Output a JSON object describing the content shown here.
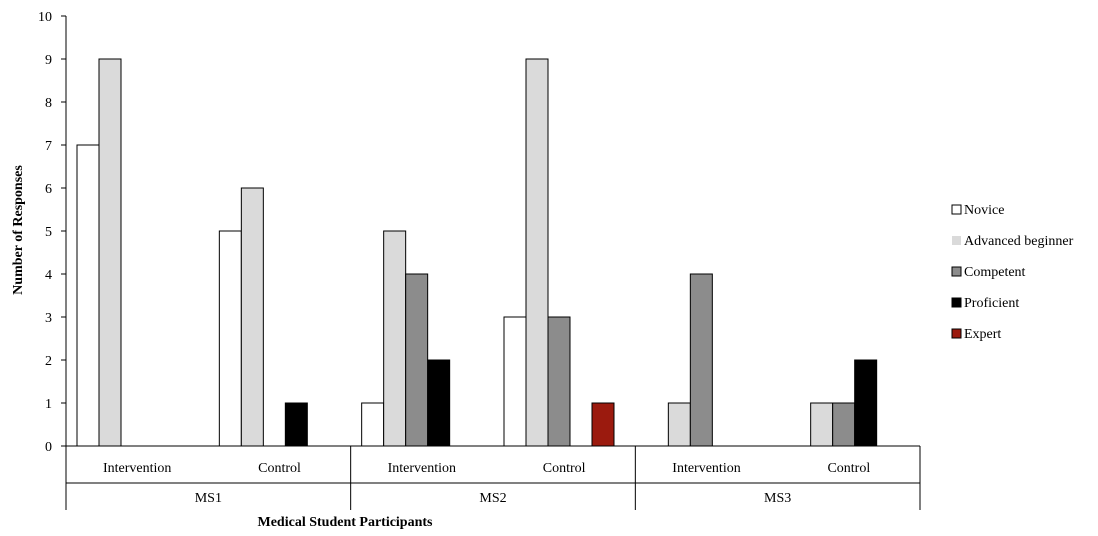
{
  "chart_data": {
    "type": "bar",
    "title": "",
    "xlabel": "Medical Student Participants",
    "ylabel": "Number of Responses",
    "ylim": [
      0,
      10
    ],
    "yticks": [
      0,
      1,
      2,
      3,
      4,
      5,
      6,
      7,
      8,
      9,
      10
    ],
    "grid": false,
    "legend_position": "right",
    "groups": [
      {
        "name": "MS1",
        "categories": [
          "Intervention",
          "Control"
        ]
      },
      {
        "name": "MS2",
        "categories": [
          "Intervention",
          "Control"
        ]
      },
      {
        "name": "MS3",
        "categories": [
          "Intervention",
          "Control"
        ]
      }
    ],
    "categories": [
      "Intervention",
      "Control",
      "Intervention",
      "Control",
      "Intervention",
      "Control"
    ],
    "series": [
      {
        "name": "Novice",
        "color": "#ffffff",
        "values": [
          7,
          5,
          1,
          3,
          0,
          0
        ]
      },
      {
        "name": "Advanced beginner",
        "color": "#dadada",
        "values": [
          9,
          6,
          5,
          9,
          1,
          1
        ]
      },
      {
        "name": "Competent",
        "color": "#8c8c8c",
        "values": [
          0,
          0,
          4,
          3,
          4,
          1
        ]
      },
      {
        "name": "Proficient",
        "color": "#000000",
        "values": [
          0,
          1,
          2,
          0,
          0,
          2
        ]
      },
      {
        "name": "Expert",
        "color": "#9b1a0e",
        "values": [
          0,
          0,
          0,
          1,
          0,
          0
        ]
      }
    ]
  }
}
